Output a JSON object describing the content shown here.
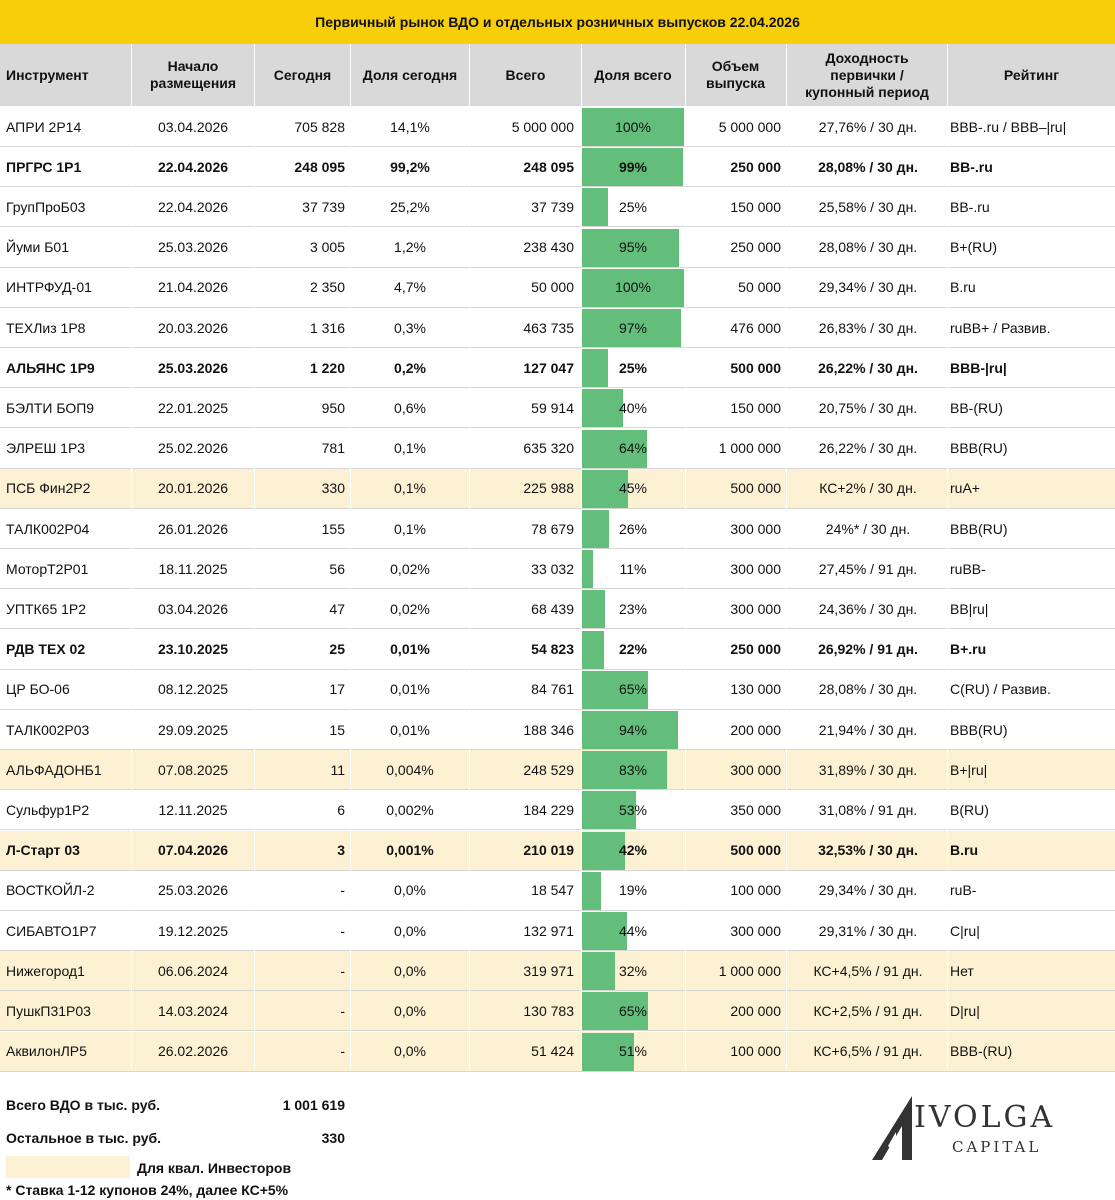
{
  "title": "Первичный рынок ВДО и отдельных розничных выпусков 22.04.2026",
  "headers": {
    "instrument": "Инструмент",
    "start_l1": "Начало",
    "start_l2": "размещения",
    "today": "Сегодня",
    "share_today": "Доля сегодня",
    "total": "Всего",
    "share_total": "Доля всего",
    "volume_l1": "Объем",
    "volume_l2": "выпуска",
    "yield_l1": "Доходность",
    "yield_l2": "первички /",
    "yield_l3": "купонный период",
    "rating": "Рейтинг"
  },
  "colors": {
    "header_bar": "#f8ce0a",
    "header_row": "#d9d9d9",
    "qual_highlight": "#fdf1d4",
    "share_bar": "#63be7b"
  },
  "rows": [
    {
      "name": "АПРИ 2Р14",
      "start": "03.04.2026",
      "today": "705 828",
      "share_today": "14,1%",
      "total": "5 000 000",
      "share_total": "100%",
      "pct": 1.0,
      "volume": "5 000 000",
      "yield": "27,76% / 30 дн.",
      "rating": "BBB-.ru / BBB–|ru|",
      "bold": false,
      "qual": false
    },
    {
      "name": "ПРГРС 1Р1",
      "start": "22.04.2026",
      "today": "248 095",
      "share_today": "99,2%",
      "total": "248 095",
      "share_total": "99%",
      "pct": 0.99,
      "volume": "250 000",
      "yield": "28,08% / 30 дн.",
      "rating": "BB-.ru",
      "bold": true,
      "qual": false
    },
    {
      "name": "ГрупПроБ03",
      "start": "22.04.2026",
      "today": "37 739",
      "share_today": "25,2%",
      "total": "37 739",
      "share_total": "25%",
      "pct": 0.25,
      "volume": "150 000",
      "yield": "25,58% / 30 дн.",
      "rating": "BB-.ru",
      "bold": false,
      "qual": false
    },
    {
      "name": "Йуми Б01",
      "start": "25.03.2026",
      "today": "3 005",
      "share_today": "1,2%",
      "total": "238 430",
      "share_total": "95%",
      "pct": 0.95,
      "volume": "250 000",
      "yield": "28,08% / 30 дн.",
      "rating": "B+(RU)",
      "bold": false,
      "qual": false
    },
    {
      "name": "ИНТРФУД-01",
      "start": "21.04.2026",
      "today": "2 350",
      "share_today": "4,7%",
      "total": "50 000",
      "share_total": "100%",
      "pct": 1.0,
      "volume": "50 000",
      "yield": "29,34% / 30 дн.",
      "rating": "B.ru",
      "bold": false,
      "qual": false
    },
    {
      "name": "ТЕХЛиз 1Р8",
      "start": "20.03.2026",
      "today": "1 316",
      "share_today": "0,3%",
      "total": "463 735",
      "share_total": "97%",
      "pct": 0.97,
      "volume": "476 000",
      "yield": "26,83% / 30 дн.",
      "rating": "ruBB+ / Развив.",
      "bold": false,
      "qual": false
    },
    {
      "name": "АЛЬЯНС 1Р9",
      "start": "25.03.2026",
      "today": "1 220",
      "share_today": "0,2%",
      "total": "127 047",
      "share_total": "25%",
      "pct": 0.25,
      "volume": "500 000",
      "yield": "26,22% / 30 дн.",
      "rating": "BBB-|ru|",
      "bold": true,
      "qual": false
    },
    {
      "name": "БЭЛТИ БОП9",
      "start": "22.01.2025",
      "today": "950",
      "share_today": "0,6%",
      "total": "59 914",
      "share_total": "40%",
      "pct": 0.4,
      "volume": "150 000",
      "yield": "20,75% / 30 дн.",
      "rating": " BB-(RU)",
      "bold": false,
      "qual": false
    },
    {
      "name": "ЭЛРЕШ 1Р3",
      "start": "25.02.2026",
      "today": "781",
      "share_today": "0,1%",
      "total": "635 320",
      "share_total": "64%",
      "pct": 0.64,
      "volume": "1 000 000",
      "yield": "26,22% / 30 дн.",
      "rating": "BBB(RU)",
      "bold": false,
      "qual": false
    },
    {
      "name": "ПСБ Фин2Р2",
      "start": "20.01.2026",
      "today": "330",
      "share_today": "0,1%",
      "total": "225 988",
      "share_total": "45%",
      "pct": 0.45,
      "volume": "500 000",
      "yield": "КС+2% / 30 дн.",
      "rating": "ruA+",
      "bold": false,
      "qual": true
    },
    {
      "name": "ТАЛК002Р04",
      "start": "26.01.2026",
      "today": "155",
      "share_today": "0,1%",
      "total": "78 679",
      "share_total": "26%",
      "pct": 0.26,
      "volume": "300 000",
      "yield": "24%* / 30 дн.",
      "rating": "BBB(RU)",
      "bold": false,
      "qual": false
    },
    {
      "name": "МоторТ2Р01",
      "start": "18.11.2025",
      "today": "56",
      "share_today": "0,02%",
      "total": "33 032",
      "share_total": "11%",
      "pct": 0.11,
      "volume": "300 000",
      "yield": "27,45% / 91 дн.",
      "rating": "ruBB-",
      "bold": false,
      "qual": false
    },
    {
      "name": "УПТК65 1Р2",
      "start": "03.04.2026",
      "today": "47",
      "share_today": "0,02%",
      "total": "68 439",
      "share_total": "23%",
      "pct": 0.23,
      "volume": "300 000",
      "yield": "24,36% / 30 дн.",
      "rating": "BB|ru|",
      "bold": false,
      "qual": false
    },
    {
      "name": "РДВ ТЕХ 02",
      "start": "23.10.2025",
      "today": "25",
      "share_today": "0,01%",
      "total": "54 823",
      "share_total": "22%",
      "pct": 0.22,
      "volume": "250 000",
      "yield": "26,92% / 91 дн.",
      "rating": "B+.ru",
      "bold": true,
      "qual": false
    },
    {
      "name": "ЦР БО-06",
      "start": "08.12.2025",
      "today": "17",
      "share_today": "0,01%",
      "total": "84 761",
      "share_total": "65%",
      "pct": 0.65,
      "volume": "130 000",
      "yield": "28,08% / 30 дн.",
      "rating": "C(RU) / Развив.",
      "bold": false,
      "qual": false
    },
    {
      "name": "ТАЛК002Р03",
      "start": "29.09.2025",
      "today": "15",
      "share_today": "0,01%",
      "total": "188 346",
      "share_total": "94%",
      "pct": 0.94,
      "volume": "200 000",
      "yield": "21,94% / 30 дн.",
      "rating": "BBB(RU)",
      "bold": false,
      "qual": false
    },
    {
      "name": "АЛЬФАДОНБ1",
      "start": "07.08.2025",
      "today": "11",
      "share_today": "0,004%",
      "total": "248 529",
      "share_total": "83%",
      "pct": 0.83,
      "volume": "300 000",
      "yield": "31,89% / 30 дн.",
      "rating": "B+|ru|",
      "bold": false,
      "qual": true
    },
    {
      "name": "Сульфур1Р2",
      "start": "12.11.2025",
      "today": "6",
      "share_today": "0,002%",
      "total": "184 229",
      "share_total": "53%",
      "pct": 0.53,
      "volume": "350 000",
      "yield": "31,08% / 91 дн.",
      "rating": "B(RU)",
      "bold": false,
      "qual": false
    },
    {
      "name": "Л-Старт 03",
      "start": "07.04.2026",
      "today": "3",
      "share_today": "0,001%",
      "total": "210 019",
      "share_total": "42%",
      "pct": 0.42,
      "volume": "500 000",
      "yield": "32,53% / 30 дн.",
      "rating": "B.ru",
      "bold": true,
      "qual": true
    },
    {
      "name": "ВОСТКОЙЛ-2",
      "start": "25.03.2026",
      "today": "-",
      "share_today": "0,0%",
      "total": "18 547",
      "share_total": "19%",
      "pct": 0.19,
      "volume": "100 000",
      "yield": "29,34% / 30 дн.",
      "rating": "ruB-",
      "bold": false,
      "qual": false
    },
    {
      "name": "СИБАВТО1Р7",
      "start": "19.12.2025",
      "today": "-",
      "share_today": "0,0%",
      "total": "132 971",
      "share_total": "44%",
      "pct": 0.44,
      "volume": "300 000",
      "yield": "29,31% / 30 дн.",
      "rating": "C|ru|",
      "bold": false,
      "qual": false
    },
    {
      "name": "Нижегород1",
      "start": "06.06.2024",
      "today": "-",
      "share_today": "0,0%",
      "total": "319 971",
      "share_total": "32%",
      "pct": 0.32,
      "volume": "1 000 000",
      "yield": "КС+4,5% / 91 дн.",
      "rating": "Нет",
      "bold": false,
      "qual": true
    },
    {
      "name": "ПушкП31Р03",
      "start": "14.03.2024",
      "today": "-",
      "share_today": "0,0%",
      "total": "130 783",
      "share_total": "65%",
      "pct": 0.65,
      "volume": "200 000",
      "yield": "КС+2,5% / 91 дн.",
      "rating": "D|ru|",
      "bold": false,
      "qual": true
    },
    {
      "name": "АквилонЛР5",
      "start": "26.02.2026",
      "today": "-",
      "share_today": "0,0%",
      "total": "51 424",
      "share_total": "51%",
      "pct": 0.51,
      "volume": "100 000",
      "yield": "КС+6,5% / 91 дн.",
      "rating": "BBB-(RU)",
      "bold": false,
      "qual": true
    }
  ],
  "footer": {
    "total_label": "Всего ВДО в тыс. руб.",
    "total_value": "1 001 619",
    "other_label": "Остальное в тыс. руб.",
    "other_value": "330",
    "legend_label": "Для квал. Инвесторов",
    "footnote": "* Ставка 1-12 купонов 24%, далее КС+5%"
  },
  "logo": {
    "name": "IVOLGA",
    "sub": "CAPITAL",
    "icon": "ivolga-logo-icon"
  }
}
